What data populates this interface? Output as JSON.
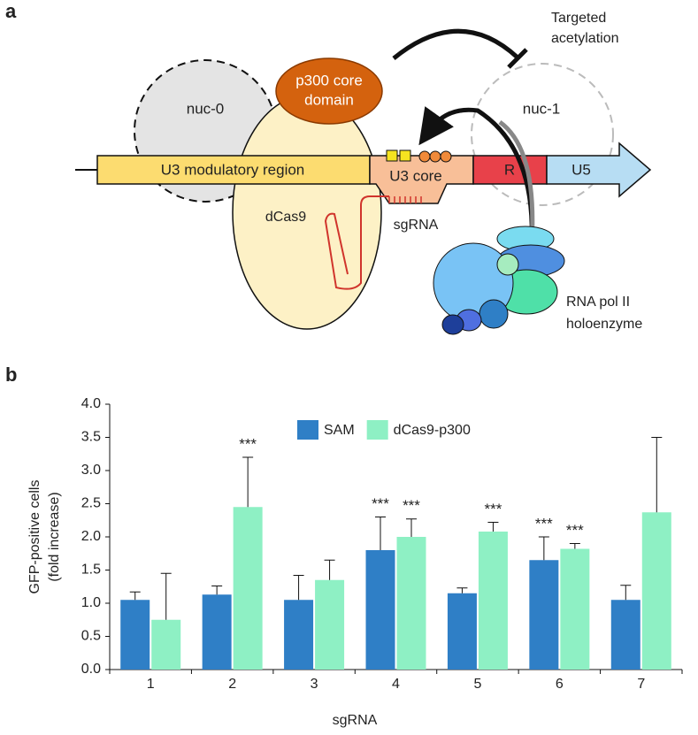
{
  "panel_a": {
    "label": "a",
    "targeted": [
      "Targeted",
      "acetylation"
    ],
    "p300": [
      "p300 core",
      "domain"
    ],
    "nuc0": "nuc-0",
    "nuc1": "nuc-1",
    "u3_modulatory": "U3 modulatory region",
    "u3_core": "U3 core",
    "r": "R",
    "u5": "U5",
    "dcas9": "dCas9",
    "sgrna": "sgRNA",
    "polii": [
      "RNA pol II",
      "holoenzyme"
    ]
  },
  "chart_data": {
    "type": "bar",
    "panel_label": "b",
    "x_label": "sgRNA",
    "y_label": [
      "GFP-positive cells",
      "(fold increase)"
    ],
    "categories": [
      "1",
      "2",
      "3",
      "4",
      "5",
      "6",
      "7"
    ],
    "series": [
      {
        "name": "SAM",
        "color": "#2f7fc6",
        "values": [
          1.05,
          1.13,
          1.05,
          1.8,
          1.15,
          1.65,
          1.05
        ],
        "errors": [
          0.12,
          0.13,
          0.37,
          0.5,
          0.08,
          0.35,
          0.22
        ],
        "markers": [
          null,
          null,
          null,
          "***",
          null,
          "***",
          null
        ]
      },
      {
        "name": "dCas9-p300",
        "color": "#8ef0c4",
        "values": [
          0.75,
          2.45,
          1.35,
          2.0,
          2.08,
          1.82,
          2.37
        ],
        "errors": [
          0.7,
          0.75,
          0.3,
          0.27,
          0.14,
          0.08,
          1.13
        ],
        "markers": [
          null,
          "***",
          null,
          "***",
          "***",
          "***",
          null
        ]
      }
    ],
    "ylim": [
      0,
      4
    ],
    "yticks": [
      {
        "value": 0,
        "label": "0.0"
      },
      0.5,
      {
        "value": 1,
        "label": "1.0"
      },
      1.5,
      {
        "value": 2,
        "label": "2.0"
      },
      2.5,
      {
        "value": 3,
        "label": "3.0"
      },
      3.5,
      {
        "value": 4,
        "label": "4.0"
      }
    ],
    "legend": "top",
    "grid": false
  }
}
